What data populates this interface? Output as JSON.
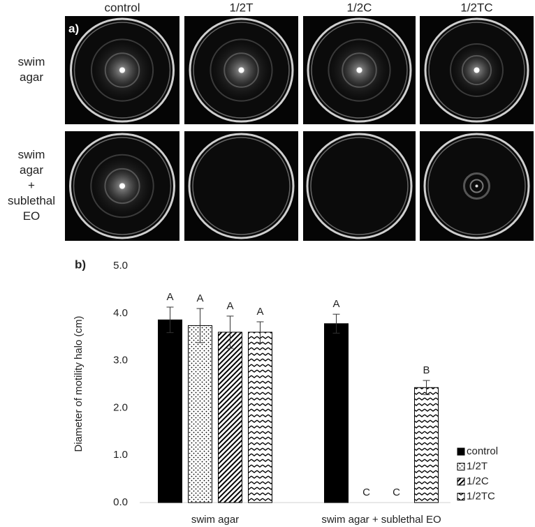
{
  "panel_a": {
    "label": "a)",
    "columns": [
      "control",
      "1/2T",
      "1/2C",
      "1/2TC"
    ],
    "rows": [
      [
        "swim",
        "agar"
      ],
      [
        "swim",
        "agar",
        "+",
        "sublethal",
        "EO"
      ]
    ]
  },
  "chart_data": {
    "type": "bar",
    "label": "b)",
    "ylabel": "Diameter of motility halo (cm)",
    "categories": [
      "swim agar",
      "swim agar + sublethal EO"
    ],
    "series": [
      {
        "name": "control",
        "color": "#000000",
        "pattern": "solid",
        "values": [
          3.86,
          3.78
        ],
        "errors": [
          0.27,
          0.2
        ],
        "letters": [
          "A",
          "A"
        ]
      },
      {
        "name": "1/2T",
        "color": "#000000",
        "pattern": "dots",
        "values": [
          3.74,
          0
        ],
        "errors": [
          0.36,
          null
        ],
        "letters": [
          "A",
          "C"
        ]
      },
      {
        "name": "1/2C",
        "color": "#000000",
        "pattern": "diagonal",
        "values": [
          3.6,
          0
        ],
        "errors": [
          0.34,
          null
        ],
        "letters": [
          "A",
          "C"
        ]
      },
      {
        "name": "1/2TC",
        "color": "#000000",
        "pattern": "wave",
        "values": [
          3.6,
          2.43
        ],
        "errors": [
          0.22,
          0.15
        ],
        "letters": [
          "A",
          "B"
        ]
      }
    ],
    "ylim": [
      0,
      5
    ],
    "yticks": [
      {
        "value": 0,
        "label": "0.0"
      },
      {
        "value": 1,
        "label": "1.0"
      },
      {
        "value": 2,
        "label": "2.0"
      },
      {
        "value": 3,
        "label": "3.0"
      },
      {
        "value": 4,
        "label": "4.0"
      },
      {
        "value": 5,
        "label": "5.0"
      }
    ],
    "grid": false,
    "legend": "lower right"
  }
}
